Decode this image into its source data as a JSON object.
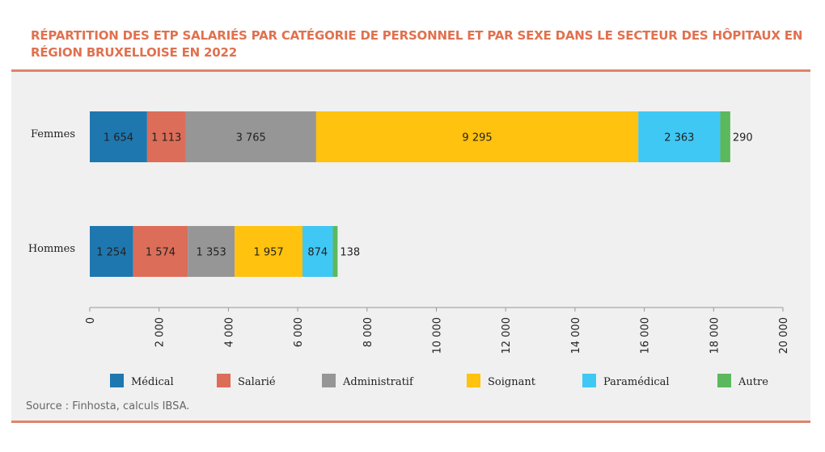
{
  "title": "RÉPARTITION DES ETP SALARIÉS PAR CATÉGORIE DE PERSONNEL ET PAR SEXE DANS LE SECTEUR DES HÔPITAUX EN RÉGION BRUXELLOISE EN 2022",
  "source": "Source : Finhosta, calculs IBSA.",
  "chart_data": {
    "type": "bar",
    "orientation": "horizontal",
    "stacked": true,
    "categories": [
      "Femmes",
      "Hommes"
    ],
    "series": [
      {
        "name": "Médical",
        "values": [
          1654,
          1254
        ],
        "labels": [
          "1 654",
          "1 254"
        ],
        "color": "#1f77b0"
      },
      {
        "name": "Salarié",
        "values": [
          1113,
          1574
        ],
        "labels": [
          "1 113",
          "1 574"
        ],
        "color": "#dc6d59"
      },
      {
        "name": "Administratif",
        "values": [
          3765,
          1353
        ],
        "labels": [
          "3 765",
          "1 353"
        ],
        "color": "#969696"
      },
      {
        "name": "Soignant",
        "values": [
          9295,
          1957
        ],
        "labels": [
          "9 295",
          "1 957"
        ],
        "color": "#ffc20e"
      },
      {
        "name": "Paramédical",
        "values": [
          2363,
          874
        ],
        "labels": [
          "2 363",
          "874"
        ],
        "color": "#40c8f4"
      },
      {
        "name": "Autre",
        "values": [
          290,
          138
        ],
        "labels": [
          "290",
          "138"
        ],
        "color": "#5cb85c"
      }
    ],
    "x_ticks": [
      0,
      2000,
      4000,
      6000,
      8000,
      10000,
      12000,
      14000,
      16000,
      18000,
      20000
    ],
    "x_tick_labels": [
      "0",
      "2 000",
      "4 000",
      "6 000",
      "8 000",
      "10 000",
      "12 000",
      "14 000",
      "16 000",
      "18 000",
      "20 000"
    ],
    "xlim": [
      0,
      20000
    ],
    "grid": false,
    "legend_position": "bottom"
  }
}
